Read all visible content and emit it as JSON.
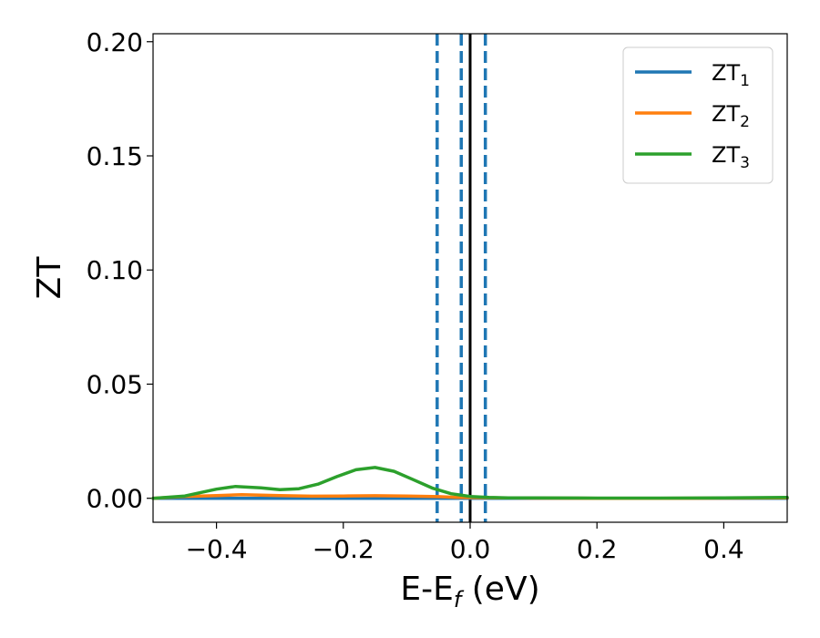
{
  "chart_data": {
    "type": "line",
    "title": "",
    "xlabel": "E-E",
    "xlabel_subscript": "f",
    "xlabel_unit": " (eV)",
    "ylabel": "ZT",
    "xlim": [
      -0.5,
      0.5
    ],
    "ylim": [
      -0.0105,
      0.2035
    ],
    "xticks": [
      -0.4,
      -0.2,
      0.0,
      0.2,
      0.4
    ],
    "xtick_labels": [
      "−0.4",
      "−0.2",
      "0.0",
      "0.2",
      "0.4"
    ],
    "yticks": [
      0.0,
      0.05,
      0.1,
      0.15,
      0.2
    ],
    "ytick_labels": [
      "0.00",
      "0.05",
      "0.10",
      "0.15",
      "0.20"
    ],
    "grid": false,
    "legend_position": "top-right",
    "series": [
      {
        "name": "ZT",
        "subscript": "1",
        "color": "#1f77b4",
        "x": [
          -0.5,
          -0.45,
          -0.4,
          -0.35,
          -0.3,
          -0.25,
          -0.2,
          -0.15,
          -0.1,
          -0.05,
          0.0,
          0.05,
          0.1,
          0.2,
          0.3,
          0.4,
          0.5
        ],
        "y": [
          0.0,
          0.0,
          0.0,
          0.0,
          0.0,
          0.0,
          0.0,
          0.0,
          0.0,
          0.0,
          0.0,
          0.0,
          0.0,
          0.0,
          0.0,
          0.0,
          0.0
        ]
      },
      {
        "name": "ZT",
        "subscript": "2",
        "color": "#ff7f0e",
        "x": [
          -0.5,
          -0.45,
          -0.4,
          -0.36,
          -0.3,
          -0.25,
          -0.2,
          -0.15,
          -0.1,
          -0.05,
          -0.02,
          0.0,
          0.05,
          0.1,
          0.2,
          0.3,
          0.4,
          0.5
        ],
        "y": [
          0.0,
          0.0008,
          0.0012,
          0.0016,
          0.0012,
          0.0009,
          0.001,
          0.0011,
          0.001,
          0.0007,
          0.0004,
          0.0003,
          0.0002,
          0.0001,
          0.0,
          0.0,
          0.0001,
          0.0002
        ]
      },
      {
        "name": "ZT",
        "subscript": "3",
        "color": "#2ca02c",
        "x": [
          -0.5,
          -0.45,
          -0.4,
          -0.37,
          -0.33,
          -0.3,
          -0.27,
          -0.24,
          -0.21,
          -0.18,
          -0.15,
          -0.12,
          -0.09,
          -0.06,
          -0.03,
          0.0,
          0.03,
          0.06,
          0.1,
          0.2,
          0.3,
          0.4,
          0.5
        ],
        "y": [
          0.0,
          0.001,
          0.004,
          0.0052,
          0.0046,
          0.0038,
          0.0042,
          0.0062,
          0.0095,
          0.0125,
          0.0135,
          0.0118,
          0.0082,
          0.0045,
          0.002,
          0.0008,
          0.0004,
          0.0002,
          0.0002,
          0.0001,
          0.0001,
          0.0002,
          0.0004
        ]
      }
    ],
    "vertical_lines": [
      {
        "x": -0.052,
        "style": "dashed",
        "color": "#1f77b4"
      },
      {
        "x": -0.014,
        "style": "dashed",
        "color": "#1f77b4"
      },
      {
        "x": 0.0,
        "style": "solid",
        "color": "#000000"
      },
      {
        "x": 0.024,
        "style": "dashed",
        "color": "#1f77b4"
      }
    ]
  }
}
